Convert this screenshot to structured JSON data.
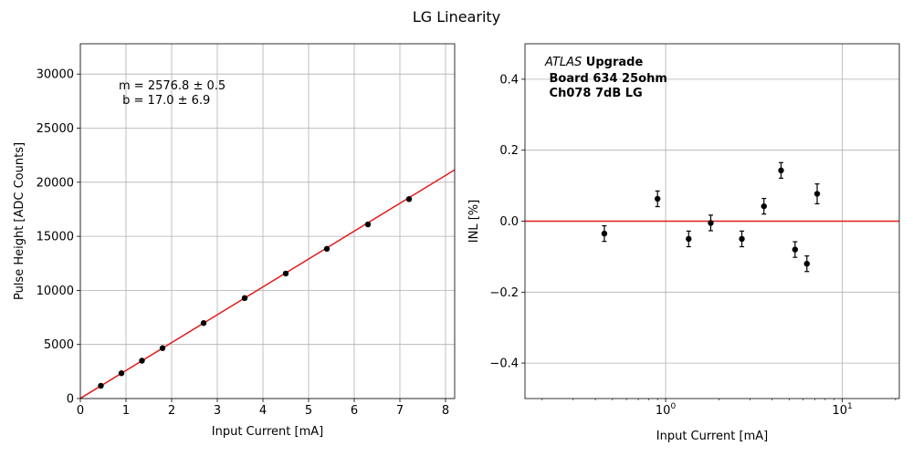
{
  "figure": {
    "title": "LG Linearity"
  },
  "chart_data": [
    {
      "type": "scatter",
      "xlabel": "Input Current [mA]",
      "ylabel": "Pulse Height [ADC Counts]",
      "xlim": [
        0,
        8.2
      ],
      "ylim": [
        0,
        32800
      ],
      "xticks": [
        0,
        1,
        2,
        3,
        4,
        5,
        6,
        7,
        8
      ],
      "yticks": [
        0,
        5000,
        10000,
        15000,
        20000,
        25000,
        30000
      ],
      "grid": true,
      "annotation": [
        "m = 2576.8 ± 0.5",
        " b = 17.0 ± 6.9"
      ],
      "fit": {
        "slope": 2576.8,
        "intercept": 17.0,
        "color": "#e41a1c"
      },
      "points": {
        "x": [
          0.45,
          0.9,
          1.35,
          1.8,
          2.7,
          3.6,
          4.5,
          5.4,
          6.3,
          7.2
        ],
        "y": [
          1180,
          2340,
          3500,
          4660,
          6980,
          9290,
          11560,
          13840,
          16100,
          18440
        ],
        "color": "#000000"
      }
    },
    {
      "type": "scatter",
      "xlabel": "Input Current [mA]",
      "ylabel": "INL [%]",
      "xscale": "log",
      "xlim": [
        0.16,
        21
      ],
      "ylim": [
        -0.5,
        0.5
      ],
      "xticks": [
        {
          "value": 1,
          "base": "10",
          "exp": "0"
        },
        {
          "value": 10,
          "base": "10",
          "exp": "1"
        }
      ],
      "yticks": [
        -0.4,
        -0.2,
        0.0,
        0.2,
        0.4
      ],
      "grid": true,
      "annotation": {
        "italic": "ATLAS",
        "bold": " Upgrade",
        "lines": [
          " Board 634 25ohm",
          " Ch078 7dB LG"
        ]
      },
      "reference_line": {
        "y": 0,
        "color": "#e41a1c"
      },
      "points": {
        "x": [
          0.45,
          0.9,
          1.35,
          1.8,
          2.7,
          3.6,
          4.5,
          5.4,
          6.3,
          7.2
        ],
        "y": [
          -0.035,
          0.063,
          -0.05,
          -0.005,
          -0.05,
          0.042,
          0.143,
          -0.08,
          -0.12,
          0.077
        ],
        "err": [
          0.022,
          0.022,
          0.022,
          0.022,
          0.022,
          0.022,
          0.022,
          0.022,
          0.022,
          0.028
        ],
        "color": "#000000"
      }
    }
  ]
}
